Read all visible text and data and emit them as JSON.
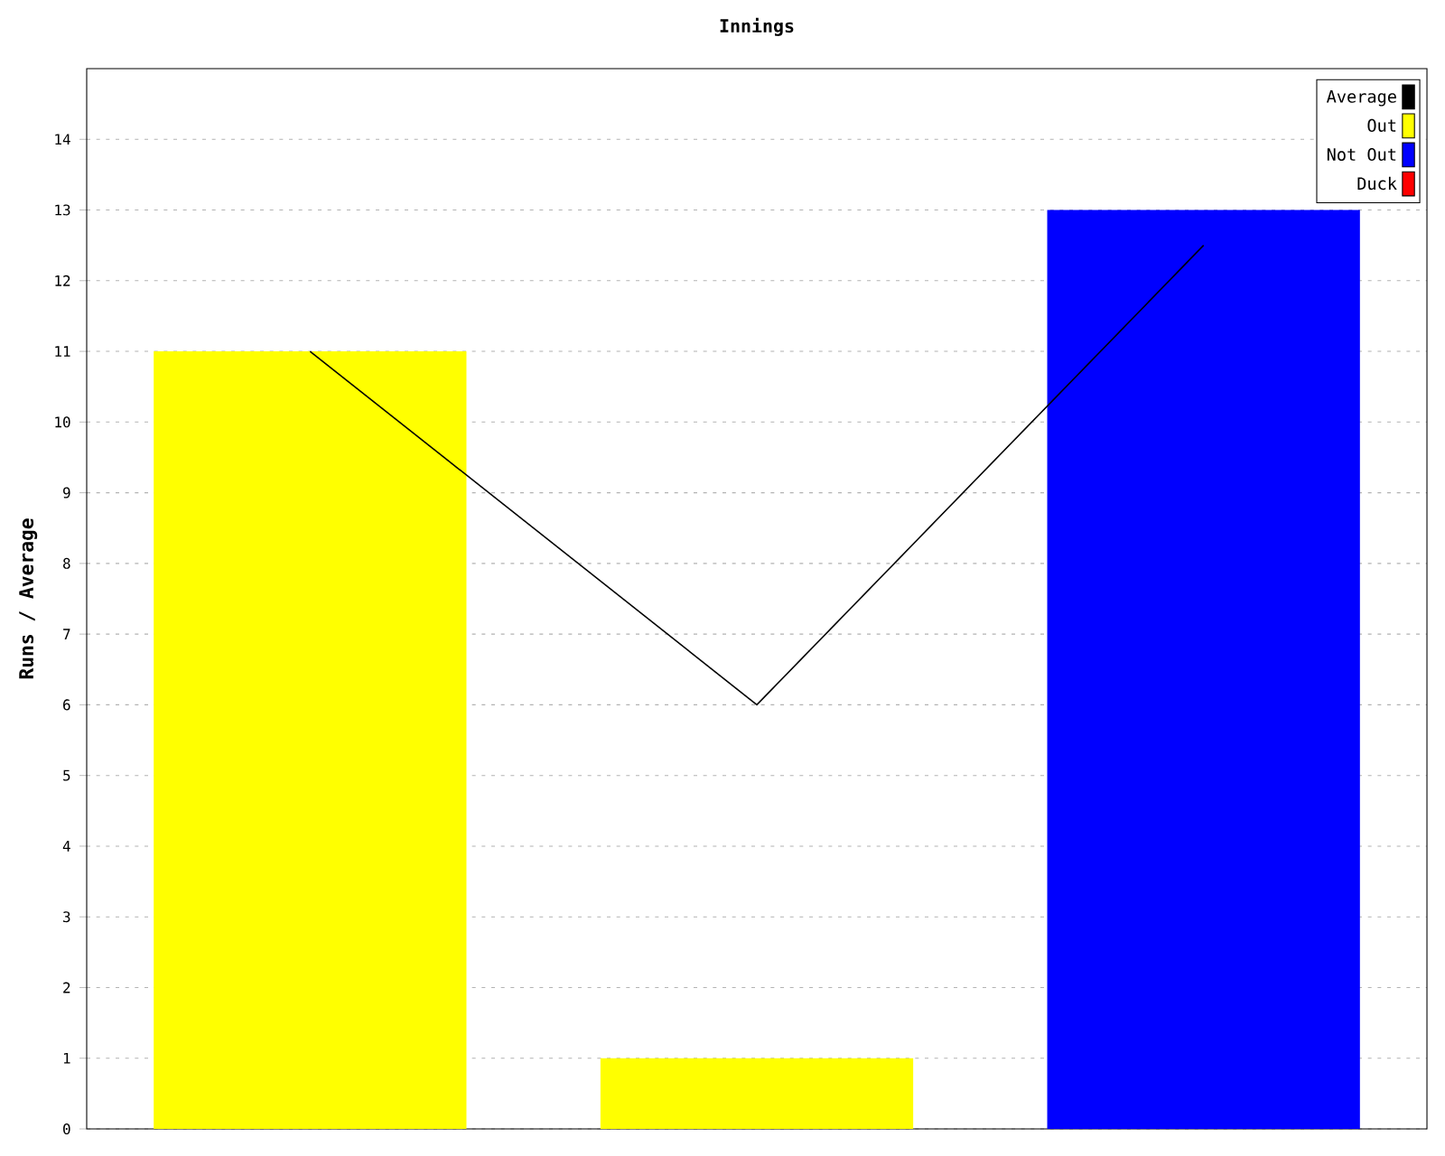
{
  "chart_data": {
    "type": "bar",
    "title": "Innings",
    "ylabel": "Runs / Average",
    "categories": [
      null,
      null,
      null
    ],
    "series": [
      {
        "name": "Average",
        "type": "line",
        "color": "#000000",
        "values": [
          11,
          6,
          12.5
        ]
      },
      {
        "name": "Out",
        "color": "#ffff00",
        "values": [
          11,
          1,
          null
        ]
      },
      {
        "name": "Not Out",
        "color": "#0000ff",
        "values": [
          null,
          null,
          13
        ]
      },
      {
        "name": "Duck",
        "color": "#ff0000",
        "values": [
          null,
          null,
          null
        ]
      }
    ],
    "ylim": [
      0,
      15
    ],
    "yticks": [
      0,
      1,
      2,
      3,
      4,
      5,
      6,
      7,
      8,
      9,
      10,
      11,
      12,
      13,
      14
    ],
    "grid": "y",
    "legend": "top right",
    "tick_labels": "y"
  }
}
